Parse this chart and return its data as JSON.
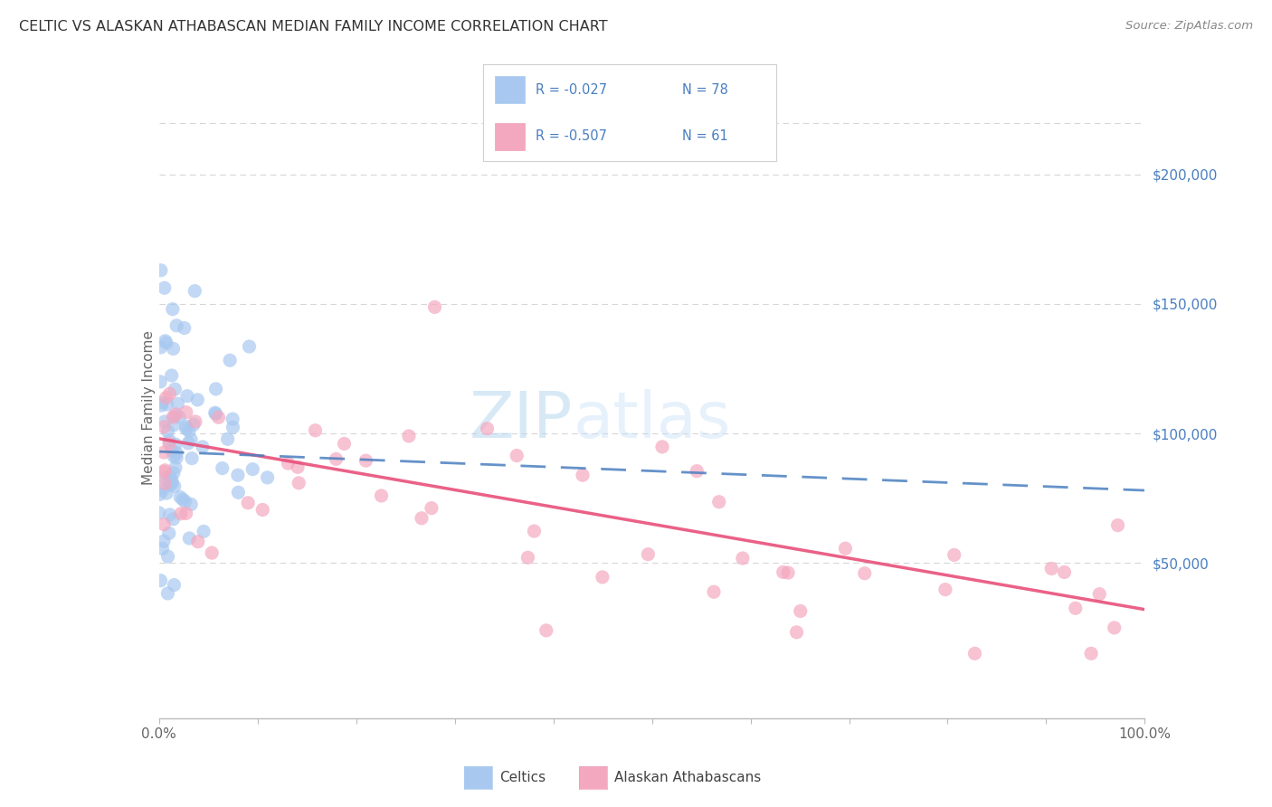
{
  "title": "CELTIC VS ALASKAN ATHABASCAN MEDIAN FAMILY INCOME CORRELATION CHART",
  "source": "Source: ZipAtlas.com",
  "ylabel": "Median Family Income",
  "legend_label1": "Celtics",
  "legend_label2": "Alaskan Athabascans",
  "legend_R1": "-0.027",
  "legend_N1": "78",
  "legend_R2": "-0.507",
  "legend_N2": "61",
  "watermark_zip": "ZIP",
  "watermark_atlas": "atlas",
  "color_celtic": "#a8c8f0",
  "color_athabascan": "#f4a8c0",
  "color_celtic_line": "#4a7fc0",
  "color_athabascan_line": "#e8507a",
  "color_legend_text": "#4a7fc0",
  "color_grid": "#cccccc",
  "color_spine": "#bbbbbb",
  "ytick_values": [
    50000,
    100000,
    150000,
    200000
  ],
  "ytick_labels": [
    "$50,000",
    "$100,000",
    "$150,000",
    "$200,000"
  ],
  "ymin": -10000,
  "ymax": 230000,
  "xmin": 0,
  "xmax": 100
}
